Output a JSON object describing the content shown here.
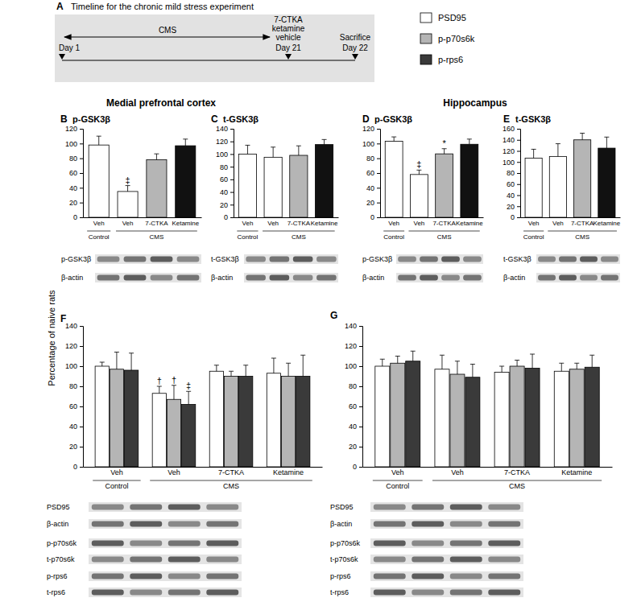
{
  "timeline": {
    "panel": "A",
    "title": "Timeline for the chronic mild stress experiment",
    "stress": "CMS",
    "treatments": [
      "7-CTKA",
      "ketamine",
      "vehicle"
    ],
    "days": [
      "Day 1",
      "Day 21",
      "Day 22"
    ],
    "end_event": "Sacrifice"
  },
  "figure": {
    "regions": [
      "Medial prefrontal cortex",
      "Hippocampus"
    ],
    "y_label": "Percentage of naive rats"
  },
  "chart_data": [
    {
      "type": "bar",
      "panel": "B",
      "title": "p-GSK3β",
      "categories": [
        "Veh",
        "Veh",
        "7-CTKA",
        "Ketamine"
      ],
      "groups": [
        {
          "label": "Control",
          "size": 1
        },
        {
          "label": "CMS",
          "size": 3
        }
      ],
      "values": [
        98,
        35,
        78,
        97
      ],
      "errors": [
        12,
        8,
        8,
        9
      ],
      "significance": [
        null,
        "‡",
        null,
        null
      ],
      "colors": [
        "#ffffff",
        "#ffffff",
        "#b5b5b5",
        "#111111"
      ],
      "ylim": [
        0,
        120
      ],
      "yticks": [
        0,
        20,
        40,
        60,
        80,
        100,
        120
      ],
      "blot_rows": [
        "p-GSK3β",
        "β-actin"
      ]
    },
    {
      "type": "bar",
      "panel": "C",
      "title": "t-GSK3β",
      "categories": [
        "Veh",
        "Veh",
        "7-CTKA",
        "Ketamine"
      ],
      "groups": [
        {
          "label": "Control",
          "size": 1
        },
        {
          "label": "CMS",
          "size": 3
        }
      ],
      "values": [
        100,
        95,
        98,
        115
      ],
      "errors": [
        14,
        16,
        15,
        8
      ],
      "significance": [
        null,
        null,
        null,
        null
      ],
      "colors": [
        "#ffffff",
        "#ffffff",
        "#b5b5b5",
        "#111111"
      ],
      "ylim": [
        0,
        140
      ],
      "yticks": [
        0,
        20,
        40,
        60,
        80,
        100,
        120,
        140
      ],
      "blot_rows": [
        "t-GSK3β",
        "β-actin"
      ]
    },
    {
      "type": "bar",
      "panel": "D",
      "title": "p-GSK3β",
      "categories": [
        "Veh",
        "Veh",
        "7-CTKA",
        "Ketamine"
      ],
      "groups": [
        {
          "label": "Control",
          "size": 1
        },
        {
          "label": "CMS",
          "size": 3
        }
      ],
      "values": [
        103,
        58,
        86,
        99
      ],
      "errors": [
        6,
        6,
        7,
        7
      ],
      "significance": [
        null,
        "‡",
        "*",
        null
      ],
      "colors": [
        "#ffffff",
        "#ffffff",
        "#b5b5b5",
        "#111111"
      ],
      "ylim": [
        0,
        120
      ],
      "yticks": [
        0,
        20,
        40,
        60,
        80,
        100,
        120
      ],
      "blot_rows": [
        "p-GSK3β",
        "β-actin"
      ]
    },
    {
      "type": "bar",
      "panel": "E",
      "title": "t-GSK3β",
      "categories": [
        "Veh",
        "Veh",
        "7-CTKA",
        "Ketamine"
      ],
      "groups": [
        {
          "label": "Control",
          "size": 1
        },
        {
          "label": "CMS",
          "size": 3
        }
      ],
      "values": [
        107,
        110,
        140,
        125
      ],
      "errors": [
        16,
        23,
        12,
        20
      ],
      "significance": [
        null,
        null,
        null,
        null
      ],
      "colors": [
        "#ffffff",
        "#ffffff",
        "#b5b5b5",
        "#111111"
      ],
      "ylim": [
        0,
        160
      ],
      "yticks": [
        0,
        20,
        40,
        60,
        80,
        100,
        120,
        140,
        160
      ],
      "blot_rows": [
        "t-GSK3β",
        "β-actin"
      ]
    },
    {
      "type": "bar",
      "panel": "F",
      "categories": [
        "Veh",
        "Veh",
        "7-CTKA",
        "Ketamine"
      ],
      "groups": [
        {
          "label": "Control",
          "size": 1
        },
        {
          "label": "CMS",
          "size": 3
        }
      ],
      "series": [
        {
          "name": "PSD95",
          "color": "#ffffff",
          "values": [
            100,
            73,
            95,
            93
          ],
          "errors": [
            4,
            7,
            6,
            15
          ],
          "significance": [
            null,
            "†",
            null,
            null
          ]
        },
        {
          "name": "p-p70s6k",
          "color": "#b5b5b5",
          "values": [
            97,
            67,
            90,
            90
          ],
          "errors": [
            17,
            14,
            5,
            13
          ],
          "significance": [
            null,
            "†",
            null,
            null
          ]
        },
        {
          "name": "p-rps6",
          "color": "#3a3a3a",
          "values": [
            96,
            62,
            90,
            90
          ],
          "errors": [
            17,
            13,
            11,
            21
          ],
          "significance": [
            null,
            "‡",
            null,
            null
          ]
        }
      ],
      "ylim": [
        0,
        140
      ],
      "yticks": [
        0,
        20,
        40,
        60,
        80,
        100,
        120,
        140
      ],
      "blot_rows": [
        "PSD95",
        "β-actin",
        "p-p70s6k",
        "t-p70s6k",
        "p-rps6",
        "t-rps6"
      ]
    },
    {
      "type": "bar",
      "panel": "G",
      "categories": [
        "Veh",
        "Veh",
        "7-CTKA",
        "Ketamine"
      ],
      "groups": [
        {
          "label": "Control",
          "size": 1
        },
        {
          "label": "CMS",
          "size": 3
        }
      ],
      "series": [
        {
          "name": "PSD95",
          "color": "#ffffff",
          "values": [
            100,
            97,
            94,
            95
          ],
          "errors": [
            7,
            14,
            6,
            8
          ]
        },
        {
          "name": "p-p70s6k",
          "color": "#b5b5b5",
          "values": [
            103,
            92,
            100,
            97
          ],
          "errors": [
            7,
            13,
            6,
            6
          ]
        },
        {
          "name": "p-rps6",
          "color": "#3a3a3a",
          "values": [
            105,
            89,
            98,
            99
          ],
          "errors": [
            10,
            13,
            14,
            12
          ]
        }
      ],
      "ylim": [
        0,
        140
      ],
      "yticks": [
        0,
        20,
        40,
        60,
        80,
        100,
        120,
        140
      ],
      "blot_rows": [
        "PSD95",
        "β-actin",
        "p-p70s6k",
        "t-p70s6k",
        "p-rps6",
        "t-rps6"
      ]
    }
  ]
}
